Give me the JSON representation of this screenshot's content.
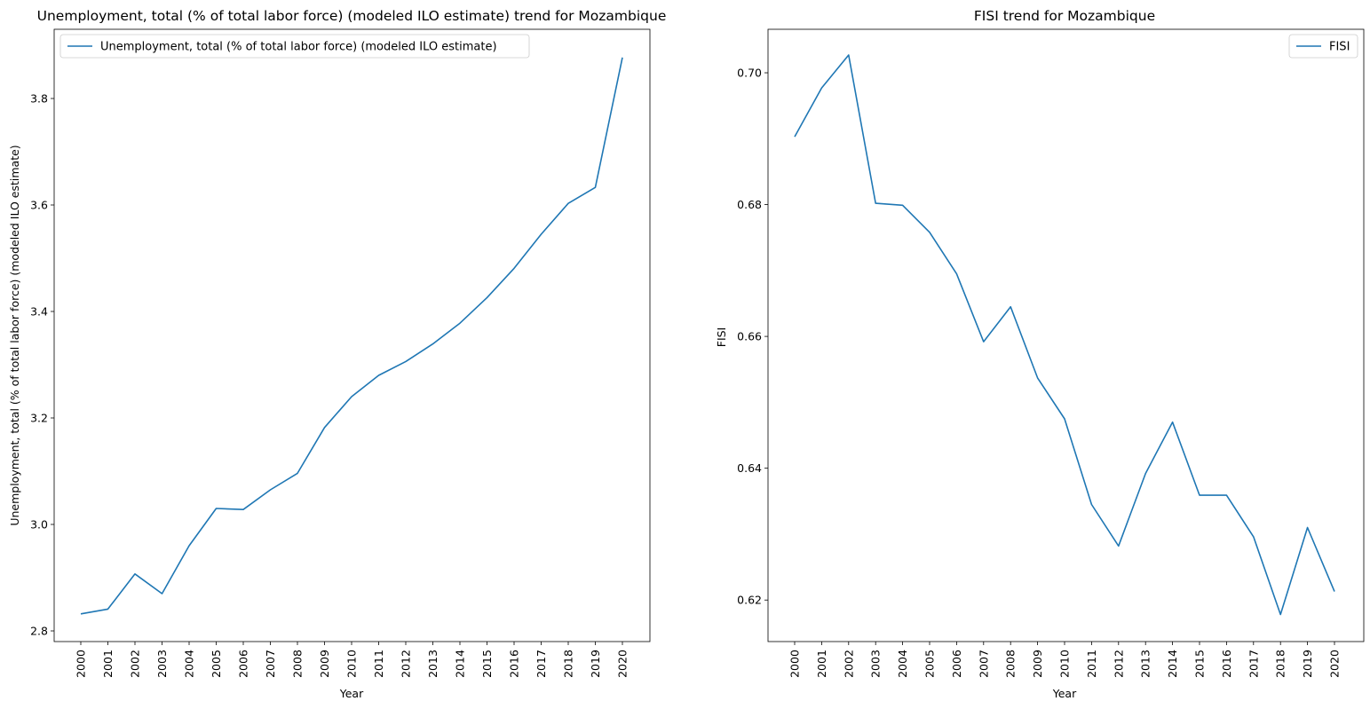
{
  "chart_data": [
    {
      "type": "line",
      "title": "Unemployment, total (% of total labor force) (modeled ILO estimate) trend for Mozambique",
      "xlabel": "Year",
      "ylabel": "Unemployment, total (% of total labor force) (modeled ILO estimate)",
      "categories": [
        "2000",
        "2001",
        "2002",
        "2003",
        "2004",
        "2005",
        "2006",
        "2007",
        "2008",
        "2009",
        "2010",
        "2011",
        "2012",
        "2013",
        "2014",
        "2015",
        "2016",
        "2017",
        "2018",
        "2019",
        "2020"
      ],
      "yticks": [
        "2.8",
        "3.0",
        "3.2",
        "3.4",
        "3.6",
        "3.8"
      ],
      "ylim": [
        2.78,
        3.93
      ],
      "grid": false,
      "legend_position": "top-left",
      "series": [
        {
          "name": "Unemployment, total (% of total labor force) (modeled ILO estimate)",
          "color": "#1f77b4",
          "values": [
            2.832,
            2.841,
            2.907,
            2.87,
            2.96,
            3.03,
            3.028,
            3.065,
            3.096,
            3.182,
            3.24,
            3.28,
            3.306,
            3.339,
            3.378,
            3.426,
            3.481,
            3.545,
            3.603,
            3.633,
            3.877
          ]
        }
      ]
    },
    {
      "type": "line",
      "title": "FISI trend for Mozambique",
      "xlabel": "Year",
      "ylabel": "FISI",
      "categories": [
        "2000",
        "2001",
        "2002",
        "2003",
        "2004",
        "2005",
        "2006",
        "2007",
        "2008",
        "2009",
        "2010",
        "2011",
        "2012",
        "2013",
        "2014",
        "2015",
        "2016",
        "2017",
        "2018",
        "2019",
        "2020"
      ],
      "yticks": [
        "0.62",
        "0.64",
        "0.66",
        "0.68",
        "0.70"
      ],
      "ylim": [
        0.6137,
        0.7066
      ],
      "grid": false,
      "legend_position": "top-right",
      "series": [
        {
          "name": "FISI",
          "color": "#1f77b4",
          "values": [
            0.6903,
            0.6977,
            0.7027,
            0.6802,
            0.6799,
            0.6758,
            0.6695,
            0.6592,
            0.6645,
            0.6537,
            0.6475,
            0.6345,
            0.6282,
            0.6392,
            0.647,
            0.6359,
            0.6359,
            0.6296,
            0.6178,
            0.631,
            0.6213
          ]
        }
      ]
    }
  ]
}
